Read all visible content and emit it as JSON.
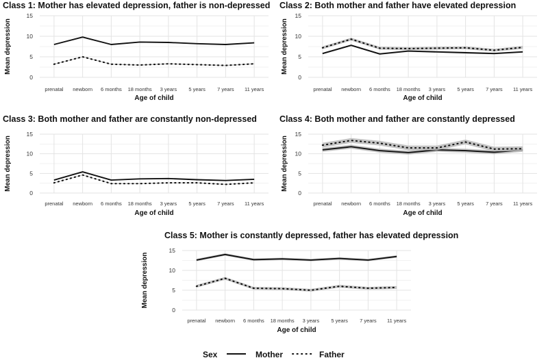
{
  "legend": {
    "title": "Sex",
    "items": [
      {
        "label": "Mother",
        "style": "solid"
      },
      {
        "label": "Father",
        "style": "dotted"
      }
    ]
  },
  "colors": {
    "line": "#111111",
    "band": "#b9b9b9",
    "grid": "#e3e3e3"
  },
  "chart_data": [
    {
      "type": "line",
      "title": "Class 1: Mother has elevated depression, father is non-depressed",
      "xlabel": "Age of child",
      "ylabel": "Mean depression",
      "categories": [
        "prenatal",
        "newborn",
        "6 months",
        "18 months",
        "3 years",
        "5 years",
        "7 years",
        "11 years"
      ],
      "ylim": [
        0,
        15
      ],
      "yticks": [
        0,
        5,
        10,
        15
      ],
      "series": [
        {
          "name": "Mother",
          "values": [
            8.0,
            9.8,
            8.0,
            8.6,
            8.5,
            8.2,
            8.0,
            8.4
          ],
          "band": 0.12
        },
        {
          "name": "Father",
          "values": [
            3.2,
            5.0,
            3.2,
            3.0,
            3.3,
            3.1,
            2.9,
            3.3
          ],
          "band": 0.12
        }
      ]
    },
    {
      "type": "line",
      "title": "Class 2: Both mother and father have elevated depression",
      "xlabel": "Age of child",
      "ylabel": "Mean depression",
      "categories": [
        "prenatal",
        "newborn",
        "6 months",
        "18 months",
        "3 years",
        "5 years",
        "7 years",
        "11 years"
      ],
      "ylim": [
        0,
        15
      ],
      "yticks": [
        0,
        5,
        10,
        15
      ],
      "series": [
        {
          "name": "Mother",
          "values": [
            5.8,
            7.8,
            5.7,
            6.4,
            6.2,
            6.0,
            5.8,
            6.2
          ],
          "band": 0.2
        },
        {
          "name": "Father",
          "values": [
            7.2,
            9.3,
            7.1,
            7.0,
            7.1,
            7.2,
            6.6,
            7.3
          ],
          "band": 0.35
        }
      ]
    },
    {
      "type": "line",
      "title": "Class 3: Both mother and father are constantly non-depressed",
      "xlabel": "Age of child",
      "ylabel": "Mean depression",
      "categories": [
        "prenatal",
        "newborn",
        "6 months",
        "18 months",
        "3 years",
        "5 years",
        "7 years",
        "11 years"
      ],
      "ylim": [
        0,
        15
      ],
      "yticks": [
        0,
        5,
        10,
        15
      ],
      "series": [
        {
          "name": "Mother",
          "values": [
            3.3,
            5.4,
            3.3,
            3.6,
            3.7,
            3.4,
            3.2,
            3.5
          ],
          "band": 0.1
        },
        {
          "name": "Father",
          "values": [
            2.6,
            4.6,
            2.4,
            2.4,
            2.6,
            2.6,
            2.2,
            2.6
          ],
          "band": 0.1
        }
      ]
    },
    {
      "type": "line",
      "title": "Class 4: Both mother and father are constantly depressed",
      "xlabel": "Age of child",
      "ylabel": "Mean depression",
      "categories": [
        "prenatal",
        "newborn",
        "6 months",
        "18 months",
        "3 years",
        "5 years",
        "7 years",
        "11 years"
      ],
      "ylim": [
        0,
        15
      ],
      "yticks": [
        0,
        5,
        10,
        15
      ],
      "series": [
        {
          "name": "Mother",
          "values": [
            11.0,
            11.8,
            10.8,
            10.3,
            11.0,
            10.8,
            10.4,
            11.0
          ],
          "band": 0.5
        },
        {
          "name": "Father",
          "values": [
            12.2,
            13.4,
            12.7,
            11.5,
            11.5,
            13.0,
            11.2,
            11.3
          ],
          "band": 0.6
        }
      ]
    },
    {
      "type": "line",
      "title": "Class 5: Mother is constantly depressed, father has elevated depression",
      "xlabel": "Age of child",
      "ylabel": "Mean depression",
      "categories": [
        "prenatal",
        "newborn",
        "6 months",
        "18 months",
        "3 years",
        "5 years",
        "7 years",
        "11 years"
      ],
      "ylim": [
        0,
        15
      ],
      "yticks": [
        0,
        5,
        10,
        15
      ],
      "series": [
        {
          "name": "Mother",
          "values": [
            12.6,
            14.0,
            12.7,
            12.9,
            12.6,
            13.0,
            12.6,
            13.5
          ],
          "band": 0.3
        },
        {
          "name": "Father",
          "values": [
            6.0,
            8.0,
            5.5,
            5.4,
            5.0,
            6.0,
            5.5,
            5.7
          ],
          "band": 0.35
        }
      ]
    }
  ]
}
